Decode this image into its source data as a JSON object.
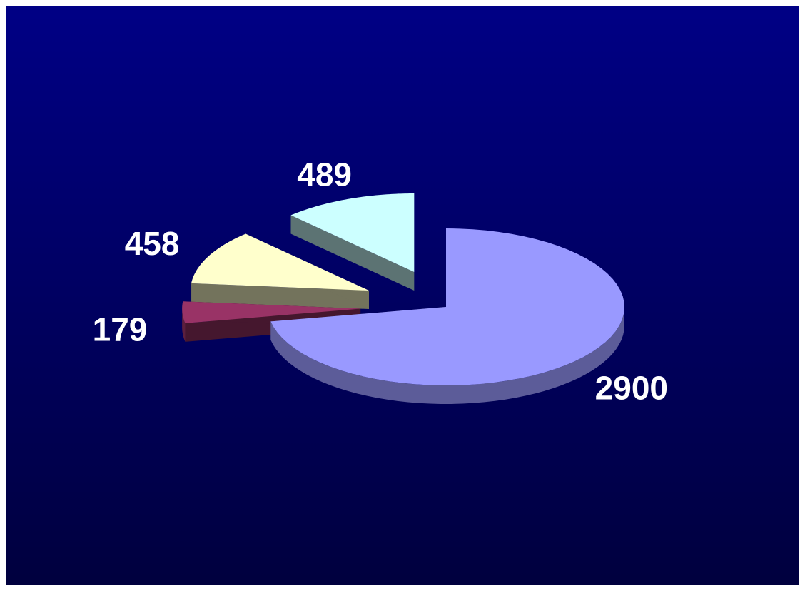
{
  "chart_data": {
    "type": "pie",
    "values": [
      2900,
      179,
      458,
      489
    ],
    "colors": [
      "#9999ff",
      "#993366",
      "#ffffcc",
      "#ccffff"
    ]
  }
}
